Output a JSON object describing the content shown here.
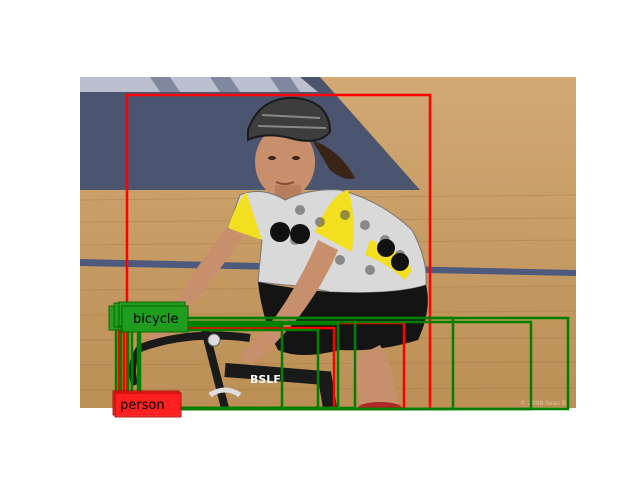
{
  "detections": {
    "labels": {
      "bicycle": "bicycle",
      "person": "person"
    }
  },
  "watermark": "© 2008 Sean B",
  "colors": {
    "person_box": "#ff0000",
    "bicycle_box": "#008000",
    "person_label_bg": "#ff2020",
    "bicycle_label_bg": "#1f9e1f",
    "floor": "#c59a62",
    "wall": "#4b5570"
  }
}
